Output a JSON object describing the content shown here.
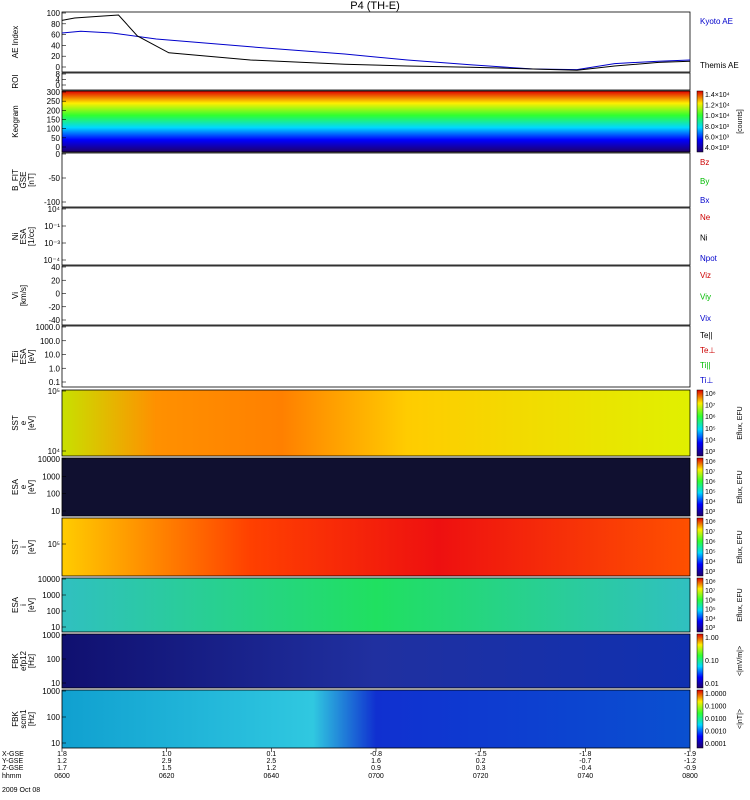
{
  "title": "P4 (TH-E)",
  "colors": {
    "blue": "#0000cc",
    "red": "#cc0000",
    "green": "#00bb00",
    "black": "#000000"
  },
  "chart_data": [
    {
      "type": "line",
      "ylabel": "AE Index",
      "ylim": [
        0,
        100
      ],
      "yticks": [
        "100",
        "80",
        "60",
        "40",
        "20",
        "0"
      ],
      "series": [
        {
          "name": "Kyoto AE",
          "color": "blue",
          "x": [
            0,
            3,
            8,
            15,
            30,
            45,
            55,
            65,
            75,
            82,
            88,
            95,
            100
          ],
          "values": [
            65,
            68,
            65,
            55,
            42,
            30,
            20,
            12,
            5,
            4,
            14,
            18,
            20
          ]
        },
        {
          "name": "Themis AE",
          "color": "black",
          "x": [
            0,
            2,
            6,
            9,
            12,
            17,
            30,
            45,
            55,
            65,
            75,
            82,
            88,
            95,
            100
          ],
          "values": [
            86,
            90,
            93,
            95,
            60,
            32,
            20,
            13,
            10,
            8,
            5,
            3,
            10,
            16,
            18
          ]
        }
      ]
    },
    {
      "type": "heatmap",
      "ylabel": "ROI",
      "yticks": [
        "8",
        "4",
        "0"
      ]
    },
    {
      "type": "heatmap",
      "ylabel": "Keogram",
      "yticks": [
        "300",
        "250",
        "200",
        "150",
        "100",
        "50",
        "0"
      ],
      "colorbar": {
        "label": "[counts]",
        "ticks": [
          "1.4×10⁴",
          "1.2×10⁴",
          "1.0×10⁴",
          "8.0×10³",
          "6.0×10³",
          "4.0×10³"
        ]
      }
    },
    {
      "type": "line",
      "ylabel": "B_FIT\nGSE\n[nT]",
      "yticks": [
        "0",
        "-50",
        "-100"
      ],
      "series": [
        {
          "name": "Bz",
          "color": "red"
        },
        {
          "name": "By",
          "color": "green"
        },
        {
          "name": "Bx",
          "color": "blue"
        }
      ]
    },
    {
      "type": "line",
      "ylabel": "Ni\nESA\n[1/cc]",
      "yticks": [
        "10⁴",
        "10⁻¹",
        "10⁻³",
        "10⁻⁴"
      ],
      "log": true,
      "series": [
        {
          "name": "Ne",
          "color": "red"
        },
        {
          "name": "Ni",
          "color": "black"
        },
        {
          "name": "Npot",
          "color": "blue"
        }
      ]
    },
    {
      "type": "line",
      "ylabel": "Vi\n[km/s]",
      "yticks": [
        "40",
        "20",
        "0",
        "-20",
        "-40"
      ],
      "series": [
        {
          "name": "Viz",
          "color": "red"
        },
        {
          "name": "Viy",
          "color": "green"
        },
        {
          "name": "Vix",
          "color": "blue"
        }
      ]
    },
    {
      "type": "line",
      "ylabel": "TEi\nESA\n[eV]",
      "yticks": [
        "1000.0",
        "100.0",
        "10.0",
        "1.0",
        "0.1"
      ],
      "log": true,
      "series": [
        {
          "name": "Te||",
          "color": "black"
        },
        {
          "name": "Te⊥",
          "color": "red"
        },
        {
          "name": "Ti||",
          "color": "green"
        },
        {
          "name": "Ti⊥",
          "color": "blue"
        }
      ]
    },
    {
      "type": "heatmap",
      "ylabel": "SST\ne\n[eV]",
      "yticks": [
        "10⁵",
        "10⁴"
      ]
    },
    {
      "type": "heatmap",
      "ylabel": "ESA\ne\n[eV]",
      "yticks": [
        "10000",
        "1000",
        "100",
        "10"
      ]
    },
    {
      "type": "heatmap",
      "ylabel": "SST\ni\n[eV]",
      "yticks": [
        "10⁵"
      ]
    },
    {
      "type": "heatmap",
      "ylabel": "ESA\ni\n[eV]",
      "yticks": [
        "10000",
        "1000",
        "100",
        "10"
      ]
    },
    {
      "type": "heatmap",
      "ylabel": "FBK\nefp12\n[Hz]",
      "yticks": [
        "1000",
        "100",
        "10"
      ],
      "colorbar": {
        "label": "<|mV/m|>",
        "ticks": [
          "1.00",
          "0.10",
          "0.01"
        ]
      }
    },
    {
      "type": "heatmap",
      "ylabel": "FBK\nscm1\n[Hz]",
      "yticks": [
        "1000",
        "100",
        "10"
      ],
      "colorbar": {
        "label": "<|nT|>",
        "ticks": [
          "1.0000",
          "0.1000",
          "0.0100",
          "0.0010",
          "0.0001"
        ]
      }
    }
  ],
  "efu_colorbar": {
    "label": "Eflux, EFU",
    "ticks": [
      "10⁸",
      "10⁷",
      "10⁶",
      "10⁵",
      "10⁴",
      "10³"
    ]
  },
  "ephemeris": {
    "row_labels": [
      "X-GSE",
      "Y-GSE",
      "Z-GSE",
      "hhmm",
      "2009 Oct 08"
    ],
    "columns": [
      {
        "x": "1.8",
        "y": "1.2",
        "z": "1.7",
        "t": "0600"
      },
      {
        "x": "1.0",
        "y": "2.9",
        "z": "1.5",
        "t": "0620"
      },
      {
        "x": "0.1",
        "y": "2.5",
        "z": "1.2",
        "t": "0640"
      },
      {
        "x": "-0.8",
        "y": "1.6",
        "z": "0.9",
        "t": "0700"
      },
      {
        "x": "-1.5",
        "y": "0.2",
        "z": "0.3",
        "t": "0720"
      },
      {
        "x": "-1.8",
        "y": "-0.7",
        "z": "-0.4",
        "t": "0740"
      },
      {
        "x": "-1.9",
        "y": "-1.2",
        "z": "-0.9",
        "t": "0800"
      }
    ]
  }
}
